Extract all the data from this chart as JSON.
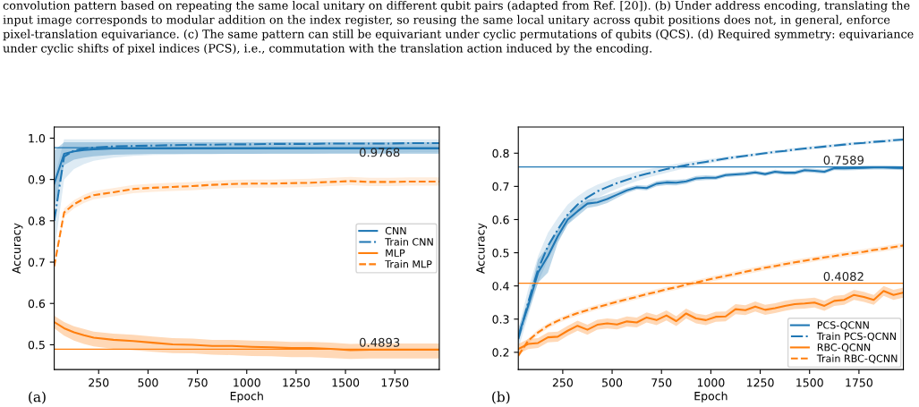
{
  "chart_data": [
    {
      "type": "line",
      "xlabel": "Epoch",
      "ylabel": "Accuracy",
      "annotations": [
        "convolution pattern based on repeating the same local unitary on different qubit pairs (adapted from Ref. [20]). (b) Under address encoding, translating the input image corresponds to modular addition on the index register, so reusing the same local unitary across qubit positions does not, in general, enforce pixel-translation equivariance. (c) The same pattern can still be equivariant under cyclic permutations of qubits (QCS). (d) Required symmetry: equivariance under cyclic shifts of pixel indices (PCS), i.e., commutation with the translation action induced by the encoding.",
        "(a)"
      ],
      "x": [
        25,
        75,
        125,
        175,
        225,
        325,
        425,
        525,
        625,
        725,
        825,
        925,
        1025,
        1125,
        1225,
        1325,
        1425,
        1525,
        1625,
        1725,
        1825,
        1925,
        1975
      ],
      "xlim": [
        25,
        1975
      ],
      "xticks": [
        250,
        500,
        750,
        1000,
        1250,
        1500,
        1750
      ],
      "ylim": [
        0.44,
        1.027
      ],
      "yticks": [
        0.5,
        0.6,
        0.7,
        0.8,
        0.9,
        {
          "value": 1.0,
          "label": "1.0"
        }
      ],
      "grid": false,
      "legend": "center right",
      "ref_lines": [
        {
          "axis": "y",
          "value": 0.9768,
          "label": "0.9768",
          "color": "#1f77b4"
        },
        {
          "axis": "y",
          "value": 0.4893,
          "label": "0.4893",
          "color": "#ff7f0e"
        }
      ],
      "series": [
        {
          "name": "CNN",
          "color": "#1f77b4",
          "line_style": "solid",
          "values": [
            0.89,
            0.962,
            0.968,
            0.971,
            0.973,
            0.975,
            0.975,
            0.975,
            0.975,
            0.975,
            0.975,
            0.975,
            0.975,
            0.975,
            0.975,
            0.975,
            0.975,
            0.975,
            0.975,
            0.975,
            0.975,
            0.975,
            0.975
          ],
          "lower": [
            0.83,
            0.935,
            0.948,
            0.953,
            0.956,
            0.96,
            0.961,
            0.962,
            0.962,
            0.962,
            0.962,
            0.962,
            0.962,
            0.962,
            0.962,
            0.962,
            0.962,
            0.962,
            0.962,
            0.962,
            0.962,
            0.962,
            0.962
          ],
          "upper": [
            0.97,
            0.99,
            0.99,
            0.99,
            0.99,
            0.99,
            0.99,
            0.99,
            0.99,
            0.99,
            0.99,
            0.99,
            0.99,
            0.99,
            0.99,
            0.99,
            0.99,
            0.99,
            0.99,
            0.99,
            0.99,
            0.99,
            0.99
          ]
        },
        {
          "name": "Train CNN",
          "color": "#1f77b4",
          "line_style": "dashdot",
          "values": [
            0.8,
            0.955,
            0.97,
            0.975,
            0.977,
            0.98,
            0.981,
            0.982,
            0.983,
            0.984,
            0.984,
            0.985,
            0.985,
            0.986,
            0.986,
            0.986,
            0.987,
            0.987,
            0.987,
            0.987,
            0.988,
            0.988,
            0.988
          ],
          "lower": [
            0.72,
            0.9,
            0.925,
            0.937,
            0.945,
            0.953,
            0.957,
            0.959,
            0.96,
            0.961,
            0.961,
            0.962,
            0.962,
            0.963,
            0.963,
            0.963,
            0.964,
            0.964,
            0.964,
            0.964,
            0.965,
            0.965,
            0.965
          ],
          "upper": [
            0.9,
            0.997,
            0.997,
            0.997,
            0.997,
            0.997,
            0.997,
            0.997,
            0.997,
            0.997,
            0.997,
            0.997,
            0.997,
            0.997,
            0.997,
            0.997,
            0.997,
            0.997,
            0.997,
            0.997,
            0.997,
            0.997,
            0.997
          ]
        },
        {
          "name": "MLP",
          "color": "#ff7f0e",
          "line_style": "solid",
          "values": [
            0.555,
            0.54,
            0.53,
            0.523,
            0.517,
            0.512,
            0.509,
            0.505,
            0.501,
            0.5,
            0.497,
            0.497,
            0.495,
            0.494,
            0.492,
            0.492,
            0.49,
            0.487,
            0.488,
            0.488,
            0.488,
            0.488,
            0.488
          ],
          "lower": [
            0.54,
            0.522,
            0.51,
            0.502,
            0.496,
            0.49,
            0.487,
            0.483,
            0.48,
            0.479,
            0.476,
            0.475,
            0.473,
            0.472,
            0.47,
            0.47,
            0.468,
            0.466,
            0.467,
            0.467,
            0.467,
            0.467,
            0.467
          ],
          "upper": [
            0.57,
            0.555,
            0.545,
            0.538,
            0.532,
            0.527,
            0.524,
            0.52,
            0.516,
            0.515,
            0.512,
            0.512,
            0.51,
            0.509,
            0.507,
            0.507,
            0.505,
            0.502,
            0.503,
            0.503,
            0.503,
            0.503,
            0.503
          ]
        },
        {
          "name": "Train MLP",
          "color": "#ff7f0e",
          "line_style": "dashed",
          "values": [
            0.69,
            0.82,
            0.84,
            0.853,
            0.862,
            0.869,
            0.877,
            0.88,
            0.882,
            0.884,
            0.887,
            0.889,
            0.89,
            0.89,
            0.891,
            0.892,
            0.894,
            0.896,
            0.894,
            0.894,
            0.895,
            0.895,
            0.895
          ],
          "lower": [
            0.68,
            0.81,
            0.83,
            0.843,
            0.852,
            0.859,
            0.867,
            0.87,
            0.872,
            0.874,
            0.877,
            0.879,
            0.88,
            0.88,
            0.881,
            0.882,
            0.884,
            0.886,
            0.884,
            0.884,
            0.885,
            0.885,
            0.885
          ],
          "upper": [
            0.7,
            0.83,
            0.85,
            0.863,
            0.872,
            0.879,
            0.887,
            0.89,
            0.892,
            0.894,
            0.897,
            0.899,
            0.9,
            0.9,
            0.901,
            0.902,
            0.904,
            0.906,
            0.904,
            0.904,
            0.905,
            0.905,
            0.905
          ]
        }
      ]
    },
    {
      "type": "line",
      "xlabel": "Epoch",
      "ylabel": "Accuracy",
      "annotations": [
        "(b)"
      ],
      "x": [
        25,
        75,
        125,
        175,
        225,
        275,
        325,
        375,
        425,
        475,
        525,
        575,
        625,
        675,
        725,
        775,
        825,
        875,
        925,
        975,
        1025,
        1075,
        1125,
        1175,
        1225,
        1275,
        1325,
        1375,
        1425,
        1475,
        1525,
        1575,
        1625,
        1675,
        1725,
        1775,
        1825,
        1875,
        1925,
        1975
      ],
      "xlim": [
        25,
        1975
      ],
      "xticks": [
        250,
        500,
        750,
        1000,
        1250,
        1500,
        1750
      ],
      "ylim": [
        0.148,
        0.879
      ],
      "yticks": [
        0.2,
        0.3,
        0.4,
        0.5,
        0.6,
        0.7,
        0.8
      ],
      "grid": false,
      "legend": "bottom right",
      "ref_lines": [
        {
          "axis": "y",
          "value": 0.7589,
          "label": "0.7589",
          "color": "#1f77b4"
        },
        {
          "axis": "y",
          "value": 0.4082,
          "label": "0.4082",
          "color": "#ff7f0e"
        }
      ],
      "series": [
        {
          "name": "PCS-QCNN",
          "color": "#1f77b4",
          "line_style": "solid",
          "values": [
            0.25,
            0.34,
            0.44,
            0.49,
            0.55,
            0.6,
            0.625,
            0.648,
            0.652,
            0.662,
            0.675,
            0.688,
            0.697,
            0.695,
            0.708,
            0.712,
            0.711,
            0.715,
            0.724,
            0.726,
            0.726,
            0.734,
            0.736,
            0.738,
            0.742,
            0.737,
            0.744,
            0.741,
            0.741,
            0.749,
            0.747,
            0.744,
            0.755,
            0.754,
            0.755,
            0.756,
            0.757,
            0.757,
            0.756,
            0.755
          ],
          "lower": [
            0.23,
            0.32,
            0.41,
            0.44,
            0.53,
            0.585,
            0.61,
            0.635,
            0.64,
            0.65,
            0.665,
            0.68,
            0.69,
            0.688,
            0.7,
            0.704,
            0.703,
            0.708,
            0.717,
            0.719,
            0.72,
            0.728,
            0.73,
            0.732,
            0.736,
            0.731,
            0.738,
            0.735,
            0.735,
            0.743,
            0.741,
            0.738,
            0.749,
            0.748,
            0.749,
            0.75,
            0.751,
            0.751,
            0.75,
            0.749
          ],
          "upper": [
            0.27,
            0.36,
            0.48,
            0.52,
            0.57,
            0.615,
            0.64,
            0.66,
            0.665,
            0.675,
            0.685,
            0.696,
            0.704,
            0.702,
            0.716,
            0.72,
            0.72,
            0.722,
            0.731,
            0.733,
            0.732,
            0.74,
            0.742,
            0.744,
            0.748,
            0.743,
            0.75,
            0.747,
            0.747,
            0.755,
            0.753,
            0.75,
            0.761,
            0.76,
            0.761,
            0.762,
            0.763,
            0.763,
            0.762,
            0.761
          ]
        },
        {
          "name": "Train PCS-QCNN",
          "color": "#1f77b4",
          "line_style": "dashdot",
          "values": [
            0.24,
            0.35,
            0.45,
            0.52,
            0.57,
            0.615,
            0.645,
            0.667,
            0.685,
            0.698,
            0.71,
            0.72,
            0.73,
            0.738,
            0.745,
            0.752,
            0.758,
            0.764,
            0.769,
            0.774,
            0.779,
            0.784,
            0.788,
            0.792,
            0.796,
            0.8,
            0.804,
            0.807,
            0.811,
            0.814,
            0.817,
            0.82,
            0.823,
            0.826,
            0.829,
            0.831,
            0.834,
            0.836,
            0.839,
            0.841
          ],
          "lower": [
            0.21,
            0.31,
            0.41,
            0.48,
            0.535,
            0.585,
            0.62,
            0.645,
            0.665,
            0.68,
            0.693,
            0.705,
            0.716,
            0.725,
            0.733,
            0.741,
            0.748,
            0.755,
            0.761,
            0.767,
            0.773,
            0.778,
            0.783,
            0.787,
            0.791,
            0.795,
            0.799,
            0.802,
            0.806,
            0.809,
            0.812,
            0.815,
            0.818,
            0.821,
            0.824,
            0.826,
            0.829,
            0.831,
            0.834,
            0.836
          ],
          "upper": [
            0.27,
            0.39,
            0.49,
            0.56,
            0.605,
            0.645,
            0.67,
            0.69,
            0.705,
            0.716,
            0.727,
            0.735,
            0.744,
            0.751,
            0.757,
            0.763,
            0.768,
            0.773,
            0.777,
            0.781,
            0.785,
            0.79,
            0.793,
            0.797,
            0.801,
            0.805,
            0.809,
            0.812,
            0.816,
            0.819,
            0.822,
            0.825,
            0.828,
            0.831,
            0.834,
            0.836,
            0.839,
            0.841,
            0.844,
            0.846
          ]
        },
        {
          "name": "RBC-QCNN",
          "color": "#ff7f0e",
          "line_style": "solid",
          "values": [
            0.21,
            0.225,
            0.228,
            0.245,
            0.247,
            0.265,
            0.28,
            0.268,
            0.283,
            0.287,
            0.284,
            0.293,
            0.29,
            0.305,
            0.297,
            0.311,
            0.294,
            0.317,
            0.302,
            0.297,
            0.307,
            0.308,
            0.33,
            0.327,
            0.338,
            0.328,
            0.333,
            0.34,
            0.345,
            0.347,
            0.35,
            0.34,
            0.355,
            0.358,
            0.373,
            0.367,
            0.358,
            0.385,
            0.373,
            0.38
          ],
          "lower": [
            0.195,
            0.21,
            0.213,
            0.23,
            0.232,
            0.25,
            0.265,
            0.253,
            0.268,
            0.272,
            0.269,
            0.278,
            0.275,
            0.29,
            0.282,
            0.296,
            0.279,
            0.302,
            0.287,
            0.282,
            0.292,
            0.293,
            0.315,
            0.312,
            0.323,
            0.313,
            0.318,
            0.325,
            0.33,
            0.332,
            0.335,
            0.325,
            0.34,
            0.343,
            0.358,
            0.352,
            0.343,
            0.37,
            0.358,
            0.365
          ],
          "upper": [
            0.225,
            0.24,
            0.243,
            0.26,
            0.262,
            0.28,
            0.295,
            0.283,
            0.298,
            0.302,
            0.299,
            0.308,
            0.305,
            0.32,
            0.312,
            0.326,
            0.309,
            0.332,
            0.317,
            0.312,
            0.322,
            0.323,
            0.345,
            0.342,
            0.353,
            0.343,
            0.348,
            0.355,
            0.36,
            0.362,
            0.365,
            0.355,
            0.37,
            0.373,
            0.388,
            0.382,
            0.373,
            0.4,
            0.388,
            0.395
          ]
        },
        {
          "name": "Train RBC-QCNN",
          "color": "#ff7f0e",
          "line_style": "dashed",
          "values": [
            0.19,
            0.235,
            0.26,
            0.28,
            0.295,
            0.307,
            0.318,
            0.327,
            0.336,
            0.344,
            0.352,
            0.36,
            0.367,
            0.375,
            0.382,
            0.39,
            0.396,
            0.404,
            0.41,
            0.417,
            0.424,
            0.43,
            0.436,
            0.443,
            0.449,
            0.455,
            0.46,
            0.466,
            0.471,
            0.476,
            0.481,
            0.486,
            0.49,
            0.495,
            0.499,
            0.503,
            0.508,
            0.512,
            0.517,
            0.522
          ],
          "lower": [
            0.182,
            0.227,
            0.252,
            0.272,
            0.287,
            0.299,
            0.31,
            0.319,
            0.328,
            0.336,
            0.344,
            0.352,
            0.359,
            0.367,
            0.374,
            0.382,
            0.388,
            0.396,
            0.402,
            0.409,
            0.416,
            0.422,
            0.428,
            0.435,
            0.441,
            0.447,
            0.452,
            0.458,
            0.463,
            0.468,
            0.473,
            0.478,
            0.482,
            0.487,
            0.491,
            0.495,
            0.5,
            0.504,
            0.509,
            0.514
          ],
          "upper": [
            0.198,
            0.243,
            0.268,
            0.288,
            0.303,
            0.315,
            0.326,
            0.335,
            0.344,
            0.352,
            0.36,
            0.368,
            0.375,
            0.383,
            0.39,
            0.398,
            0.404,
            0.412,
            0.418,
            0.425,
            0.432,
            0.438,
            0.444,
            0.451,
            0.457,
            0.463,
            0.468,
            0.474,
            0.479,
            0.484,
            0.489,
            0.494,
            0.498,
            0.503,
            0.507,
            0.511,
            0.516,
            0.52,
            0.525,
            0.53
          ]
        }
      ]
    }
  ]
}
